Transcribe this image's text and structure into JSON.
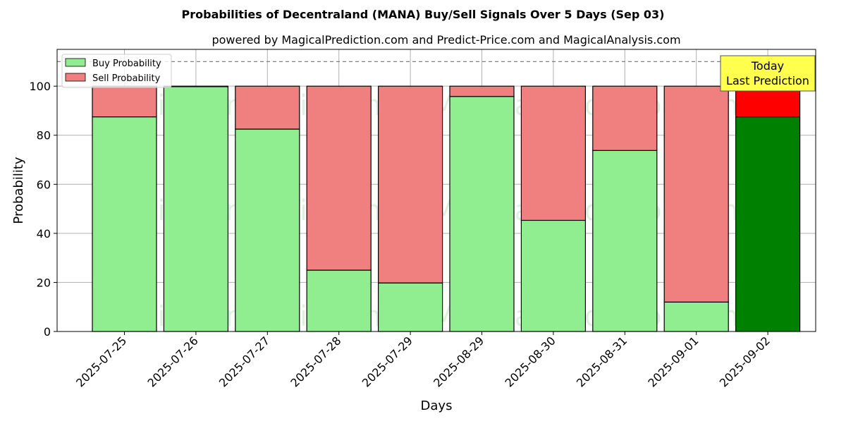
{
  "chart_data": {
    "type": "bar",
    "stacked": true,
    "title": "Probabilities of Decentraland (MANA) Buy/Sell Signals Over 5 Days (Sep 03)",
    "subtitle": "powered by MagicalPrediction.com and Predict-Price.com and MagicalAnalysis.com",
    "xlabel": "Days",
    "ylabel": "Probability",
    "ylim": [
      0,
      115
    ],
    "yticks": [
      0,
      20,
      40,
      60,
      80,
      100
    ],
    "grid": true,
    "legend_position": "top-left",
    "categories": [
      "2025-07-25",
      "2025-07-26",
      "2025-07-27",
      "2025-07-28",
      "2025-07-29",
      "2025-08-29",
      "2025-08-30",
      "2025-08-31",
      "2025-09-01",
      "2025-09-02"
    ],
    "series": [
      {
        "name": "Buy Probability",
        "values": [
          87.5,
          99.8,
          82.5,
          25.0,
          19.8,
          95.8,
          45.3,
          73.8,
          12.0,
          87.5
        ]
      },
      {
        "name": "Sell Probability",
        "values": [
          12.5,
          0.2,
          17.5,
          75.0,
          80.2,
          4.2,
          54.7,
          26.2,
          88.0,
          12.5
        ]
      }
    ],
    "threshold_line": 110,
    "annotation": {
      "line1": "Today",
      "line2": "Last Prediction"
    },
    "highlight_index": 9
  },
  "colors": {
    "buy": "#90ee90",
    "sell": "#f08080",
    "buy_highlight": "#008000",
    "sell_highlight": "#ff0000",
    "annotation_bg": "#ffff4d"
  },
  "watermarks": [
    "MagicalAnalysis.com",
    "MagicalPrediction.com"
  ]
}
